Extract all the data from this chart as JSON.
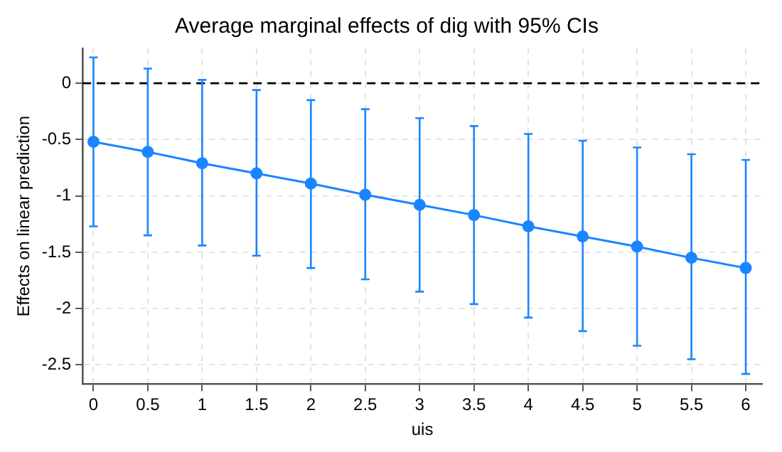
{
  "chart_data": {
    "type": "line",
    "title": "Average marginal effects of dig with 95% CIs",
    "xlabel": "uis",
    "ylabel": "Effects on linear prediction",
    "x": [
      0,
      0.5,
      1,
      1.5,
      2,
      2.5,
      3,
      3.5,
      4,
      4.5,
      5,
      5.5,
      6
    ],
    "series": [
      {
        "color": "#1a85ff",
        "values": [
          -0.52,
          -0.61,
          -0.71,
          -0.8,
          -0.89,
          -0.99,
          -1.08,
          -1.17,
          -1.27,
          -1.36,
          -1.45,
          -1.55,
          -1.64
        ],
        "errors": [
          [
            -1.27,
            0.23
          ],
          [
            -1.35,
            0.13
          ],
          [
            -1.44,
            0.03
          ],
          [
            -1.53,
            -0.06
          ],
          [
            -1.64,
            -0.15
          ],
          [
            -1.74,
            -0.23
          ],
          [
            -1.85,
            -0.31
          ],
          [
            -1.96,
            -0.38
          ],
          [
            -2.08,
            -0.45
          ],
          [
            -2.2,
            -0.51
          ],
          [
            -2.33,
            -0.57
          ],
          [
            -2.45,
            -0.63
          ],
          [
            -2.58,
            -0.68
          ]
        ]
      }
    ],
    "xlim": [
      -0.1,
      6.15
    ],
    "xticks": [
      0,
      0.5,
      1,
      1.5,
      2,
      2.5,
      3,
      3.5,
      4,
      4.5,
      5,
      5.5,
      6
    ],
    "ylim": [
      -2.67,
      0.31
    ],
    "yticks": [
      0,
      -0.5,
      -1,
      -1.5,
      -2,
      -2.5
    ],
    "ref_lines": [
      {
        "axis": "y",
        "value": 0,
        "color": "#000000",
        "line_style": "dashed"
      }
    ],
    "grid": true,
    "legend": false,
    "marker": "circle",
    "line_style": "solid"
  }
}
